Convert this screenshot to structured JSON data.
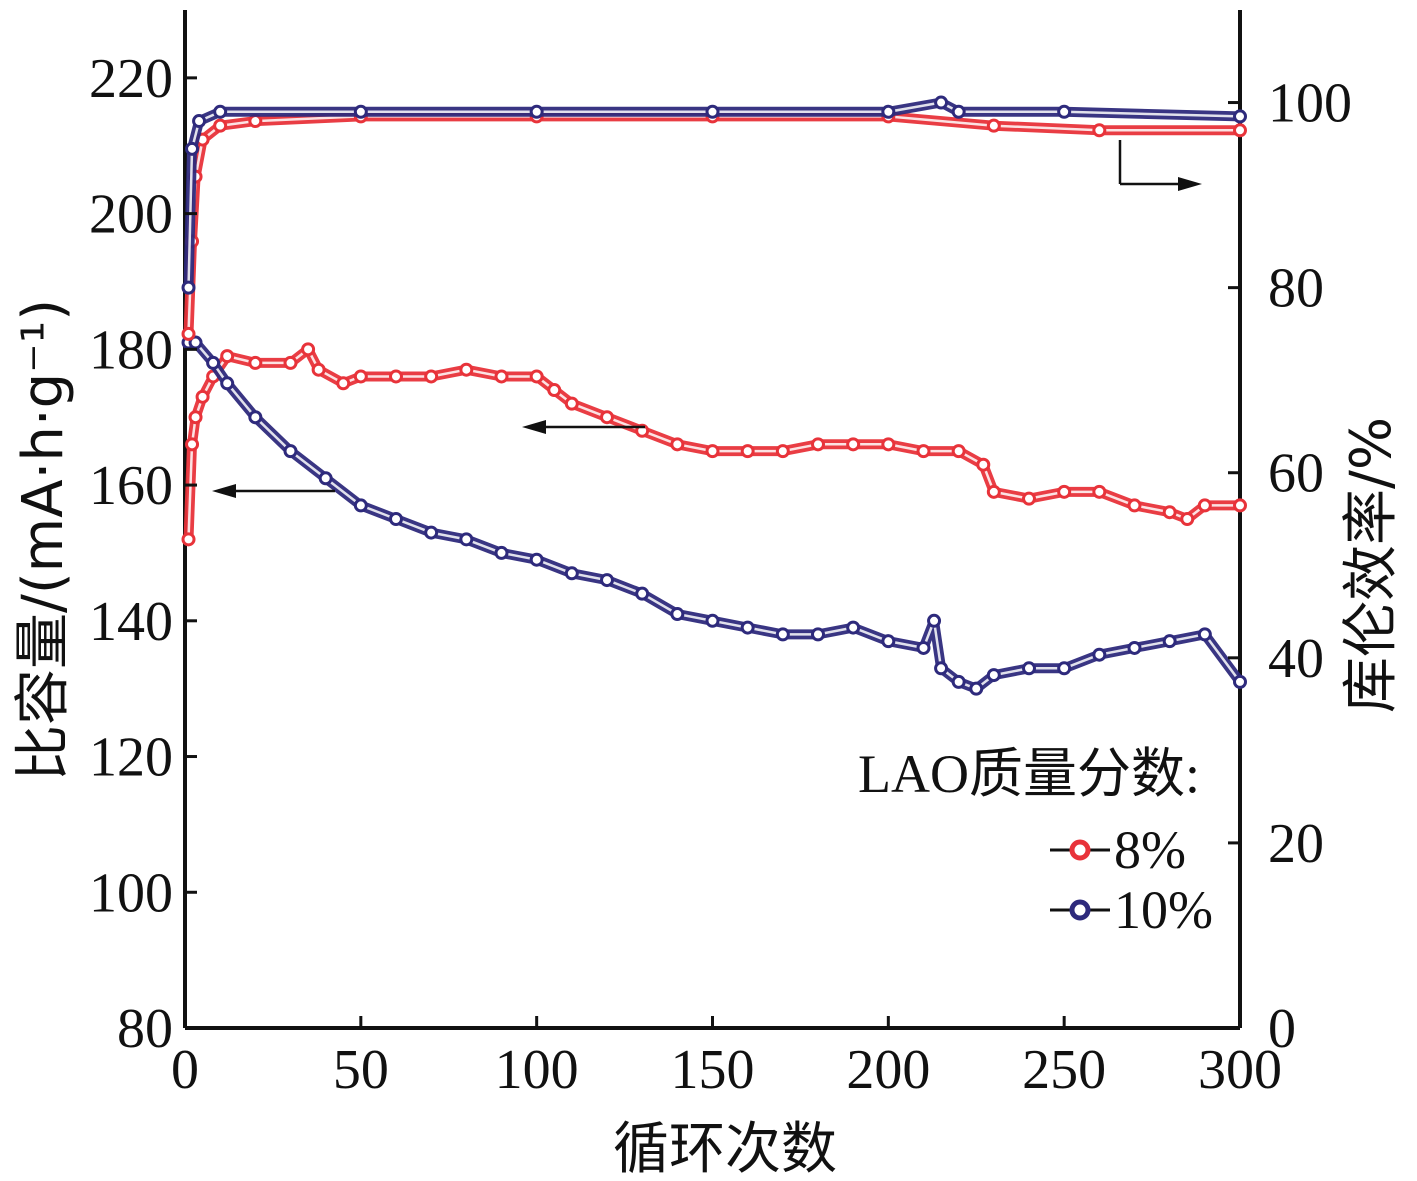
{
  "chart_data": {
    "type": "line",
    "xlabel": "循环次数",
    "ylabel_left": "比容量/(mA·h·g⁻¹)",
    "ylabel_right": "库伦效率/%",
    "xlim": [
      0,
      300
    ],
    "ylim_left": [
      80,
      230
    ],
    "ylim_right": [
      0,
      110
    ],
    "x_ticks": [
      0,
      50,
      100,
      150,
      200,
      250,
      300
    ],
    "y_left_ticks": [
      80,
      100,
      120,
      140,
      160,
      180,
      200,
      220
    ],
    "y_right_ticks": [
      0,
      20,
      40,
      60,
      80,
      100
    ],
    "grid": false,
    "legend_title": "LAO质量分数:",
    "legend_position": "bottom-right",
    "series": [
      {
        "name": "8%",
        "kind": "capacity",
        "axis": "left",
        "color": "#e8333a",
        "points": [
          [
            1,
            152
          ],
          [
            2,
            166
          ],
          [
            3,
            170
          ],
          [
            5,
            173
          ],
          [
            8,
            176
          ],
          [
            12,
            179
          ],
          [
            20,
            178
          ],
          [
            30,
            178
          ],
          [
            35,
            180
          ],
          [
            38,
            177
          ],
          [
            45,
            175
          ],
          [
            50,
            176
          ],
          [
            60,
            176
          ],
          [
            70,
            176
          ],
          [
            80,
            177
          ],
          [
            90,
            176
          ],
          [
            100,
            176
          ],
          [
            105,
            174
          ],
          [
            110,
            172
          ],
          [
            120,
            170
          ],
          [
            130,
            168
          ],
          [
            140,
            166
          ],
          [
            150,
            165
          ],
          [
            160,
            165
          ],
          [
            170,
            165
          ],
          [
            180,
            166
          ],
          [
            190,
            166
          ],
          [
            200,
            166
          ],
          [
            210,
            165
          ],
          [
            220,
            165
          ],
          [
            227,
            163
          ],
          [
            230,
            159
          ],
          [
            240,
            158
          ],
          [
            250,
            159
          ],
          [
            260,
            159
          ],
          [
            270,
            157
          ],
          [
            280,
            156
          ],
          [
            285,
            155
          ],
          [
            290,
            157
          ],
          [
            300,
            157
          ]
        ]
      },
      {
        "name": "10%",
        "kind": "capacity",
        "axis": "left",
        "color": "#2e2a7c",
        "points": [
          [
            1,
            181
          ],
          [
            3,
            181
          ],
          [
            8,
            178
          ],
          [
            12,
            175
          ],
          [
            20,
            170
          ],
          [
            30,
            165
          ],
          [
            40,
            161
          ],
          [
            50,
            157
          ],
          [
            60,
            155
          ],
          [
            70,
            153
          ],
          [
            80,
            152
          ],
          [
            90,
            150
          ],
          [
            100,
            149
          ],
          [
            110,
            147
          ],
          [
            120,
            146
          ],
          [
            130,
            144
          ],
          [
            140,
            141
          ],
          [
            150,
            140
          ],
          [
            160,
            139
          ],
          [
            170,
            138
          ],
          [
            180,
            138
          ],
          [
            190,
            139
          ],
          [
            200,
            137
          ],
          [
            210,
            136
          ],
          [
            213,
            140
          ],
          [
            215,
            133
          ],
          [
            220,
            131
          ],
          [
            225,
            130
          ],
          [
            230,
            132
          ],
          [
            240,
            133
          ],
          [
            250,
            133
          ],
          [
            260,
            135
          ],
          [
            270,
            136
          ],
          [
            280,
            137
          ],
          [
            290,
            138
          ],
          [
            300,
            131
          ]
        ]
      },
      {
        "name": "8%",
        "kind": "efficiency",
        "axis": "right",
        "color": "#e8333a",
        "points": [
          [
            1,
            75
          ],
          [
            2,
            85
          ],
          [
            3,
            92
          ],
          [
            5,
            96
          ],
          [
            10,
            97.5
          ],
          [
            20,
            98
          ],
          [
            50,
            98.5
          ],
          [
            100,
            98.5
          ],
          [
            150,
            98.5
          ],
          [
            200,
            98.5
          ],
          [
            230,
            97.5
          ],
          [
            260,
            97
          ],
          [
            300,
            97
          ]
        ]
      },
      {
        "name": "10%",
        "kind": "efficiency",
        "axis": "right",
        "color": "#2e2a7c",
        "points": [
          [
            1,
            80
          ],
          [
            2,
            95
          ],
          [
            4,
            98
          ],
          [
            10,
            99
          ],
          [
            50,
            99
          ],
          [
            100,
            99
          ],
          [
            150,
            99
          ],
          [
            200,
            99
          ],
          [
            215,
            100
          ],
          [
            220,
            99
          ],
          [
            250,
            99
          ],
          [
            300,
            98.5
          ]
        ]
      }
    ]
  }
}
